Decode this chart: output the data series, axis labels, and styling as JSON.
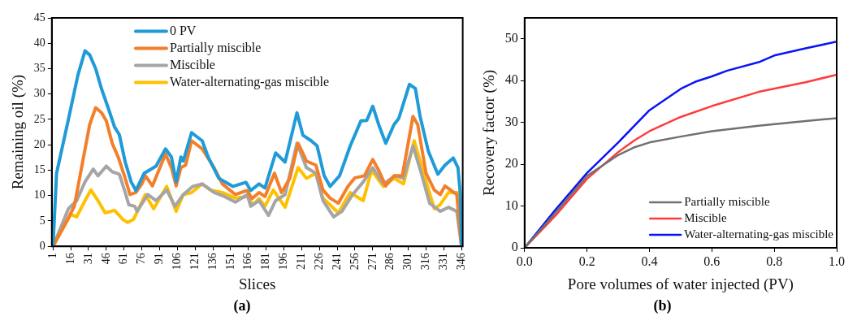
{
  "chart_data": [
    {
      "type": "line",
      "xlabel": "Slices",
      "ylabel": "Remaining oil (%)",
      "annotations": [
        "(a)"
      ],
      "xlim": [
        0,
        347
      ],
      "xticks": [
        1,
        16,
        31,
        46,
        61,
        76,
        91,
        106,
        121,
        136,
        151,
        166,
        181,
        196,
        211,
        226,
        241,
        256,
        271,
        286,
        301,
        316,
        331,
        346
      ],
      "ylim": [
        0,
        45
      ],
      "yticks": [
        0,
        5,
        10,
        15,
        20,
        25,
        30,
        35,
        40,
        45
      ],
      "legend": "top",
      "grid": false,
      "marker": "none",
      "line_style": "solid",
      "series": [
        {
          "name": "0 PV",
          "color": "#1f9bd7",
          "x": [
            1,
            4,
            14,
            22,
            28,
            32,
            37,
            42,
            48,
            53,
            57,
            62,
            67,
            71,
            78,
            88,
            96,
            101,
            105,
            109,
            111,
            118,
            127,
            132,
            141,
            153,
            164,
            168,
            175,
            180,
            189,
            197,
            207,
            212,
            219,
            224,
            230,
            235,
            243,
            252,
            261,
            266,
            271,
            276,
            282,
            289,
            293,
            302,
            307,
            311,
            318,
            326,
            332,
            339,
            343,
            345,
            346
          ],
          "values": [
            0,
            14.4,
            25,
            33.7,
            38.5,
            37.7,
            35,
            31,
            27,
            23.5,
            22,
            16.6,
            12.7,
            11,
            14.4,
            15.8,
            19.2,
            17.6,
            12.7,
            17.6,
            16.8,
            22.4,
            20.8,
            17.6,
            13.4,
            11.8,
            12.6,
            11,
            12.3,
            11.5,
            18.4,
            16.6,
            26.3,
            21.9,
            20.8,
            19.8,
            13.9,
            11.8,
            13.9,
            19.8,
            24.7,
            24.8,
            27.6,
            24,
            20.3,
            24,
            25.2,
            31.9,
            31.1,
            25.6,
            18.7,
            14.2,
            16,
            17.4,
            15.5,
            10.2,
            0
          ]
        },
        {
          "name": "Partially miscible",
          "color": "#f47f2a",
          "x": [
            1,
            12,
            19,
            26,
            32,
            37,
            42,
            46,
            51,
            56,
            62,
            66,
            71,
            76,
            79,
            85,
            96,
            101,
            105,
            109,
            113,
            118,
            127,
            137,
            144,
            155,
            165,
            169,
            175,
            180,
            188,
            194,
            201,
            208,
            215,
            223,
            229,
            235,
            242,
            250,
            256,
            264,
            271,
            276,
            282,
            289,
            296,
            305,
            309,
            316,
            323,
            328,
            332,
            342,
            346
          ],
          "values": [
            0,
            4.7,
            7.9,
            16.6,
            24,
            27.3,
            26.3,
            24.7,
            20.3,
            17.6,
            13.4,
            10.2,
            10.6,
            12.3,
            13.9,
            11.9,
            18.2,
            15.5,
            11.9,
            15.5,
            16,
            20.8,
            19.2,
            15.5,
            12.3,
            10.2,
            11,
            9.4,
            10.6,
            9.8,
            14.4,
            10.6,
            13.4,
            20.3,
            16.8,
            16,
            11.1,
            9.5,
            8.5,
            11.8,
            13.5,
            13.9,
            17.1,
            15,
            11.9,
            13.9,
            13.9,
            25.6,
            24,
            14.4,
            11.1,
            10.2,
            11.9,
            10.2,
            0
          ]
        },
        {
          "name": "Miscible",
          "color": "#a5a5a5",
          "x": [
            1,
            14,
            21,
            28,
            35,
            39,
            46,
            51,
            57,
            62,
            65,
            70,
            72,
            81,
            88,
            97,
            104,
            111,
            119,
            127,
            137,
            146,
            155,
            165,
            168,
            175,
            183,
            189,
            197,
            207,
            215,
            223,
            229,
            238,
            245,
            254,
            263,
            271,
            280,
            290,
            297,
            305,
            312,
            319,
            328,
            335,
            342,
            346
          ],
          "values": [
            0,
            7.4,
            9,
            12.7,
            15.2,
            13.9,
            15.8,
            14.7,
            14.2,
            10.6,
            8.2,
            7.9,
            6.9,
            10.2,
            9,
            11.1,
            7.9,
            10.2,
            11.8,
            12.3,
            10.6,
            9.8,
            8.7,
            10.2,
            7.9,
            9,
            6.1,
            9,
            10.2,
            20.3,
            15.5,
            14.4,
            9,
            5.8,
            6.9,
            10.2,
            12.7,
            15.5,
            12.3,
            13.9,
            13.4,
            19.8,
            14.4,
            8.5,
            6.9,
            7.7,
            6.9,
            0
          ]
        },
        {
          "name": "Water-alternating-gas miscible",
          "color": "#ffc000",
          "x": [
            1,
            16,
            21,
            28,
            33,
            39,
            45,
            53,
            60,
            64,
            69,
            79,
            86,
            97,
            105,
            111,
            118,
            127,
            134,
            144,
            155,
            165,
            170,
            175,
            180,
            187,
            197,
            208,
            215,
            223,
            229,
            242,
            252,
            263,
            270,
            280,
            289,
            297,
            306,
            314,
            323,
            328,
            335,
            343,
            346
          ],
          "values": [
            0,
            6.3,
            5.8,
            9,
            11.1,
            9,
            6.6,
            7.1,
            5.3,
            4.7,
            5.3,
            10.2,
            7.4,
            11.8,
            6.9,
            10.2,
            10.6,
            12.3,
            11.1,
            10.6,
            9.5,
            9.8,
            8.2,
            9.4,
            7.9,
            11.1,
            7.7,
            15.5,
            13.4,
            14.4,
            9.5,
            6.6,
            10.6,
            9,
            15,
            11.8,
            13.4,
            12.3,
            20.8,
            14.4,
            7.4,
            8.2,
            10.6,
            10.6,
            0
          ]
        }
      ]
    },
    {
      "type": "line",
      "xlabel": "Pore volumes of water injected (PV)",
      "ylabel": "Recovery factor (%)",
      "annotations": [
        "(b)"
      ],
      "xlim": [
        0,
        1
      ],
      "xticks": [
        {
          "value": 0,
          "label": "0.0"
        },
        0.2,
        0.4,
        0.6,
        0.8,
        {
          "value": 1,
          "label": "1.0"
        }
      ],
      "ylim": [
        0,
        55
      ],
      "yticks": [
        0,
        10,
        20,
        30,
        40,
        50
      ],
      "legend": "bottom right",
      "grid": false,
      "marker": "none",
      "line_style": "solid",
      "series": [
        {
          "name": "Partially miscible",
          "color": "#707070",
          "x": [
            0,
            0.1,
            0.2,
            0.3,
            0.35,
            0.4,
            0.5,
            0.6,
            0.75,
            0.9,
            1
          ],
          "values": [
            0,
            8.5,
            17.2,
            22.2,
            24,
            25.2,
            26.6,
            27.9,
            29.2,
            30.3,
            31
          ]
        },
        {
          "name": "Miscible",
          "color": "#ff3b3b",
          "x": [
            0,
            0.1,
            0.2,
            0.3,
            0.35,
            0.4,
            0.5,
            0.6,
            0.75,
            0.9,
            1
          ],
          "values": [
            0,
            7.8,
            16.5,
            22.9,
            25.6,
            27.9,
            31.3,
            33.9,
            37.3,
            39.6,
            41.4
          ]
        },
        {
          "name": "Water-alternating-gas miscible",
          "color": "#0a14f5",
          "x": [
            0,
            0.1,
            0.2,
            0.3,
            0.4,
            0.5,
            0.55,
            0.6,
            0.65,
            0.75,
            0.8,
            0.9,
            1
          ],
          "values": [
            0,
            9.2,
            17.9,
            25.2,
            32.9,
            38,
            39.8,
            41,
            42.4,
            44.4,
            46,
            47.7,
            49.3
          ]
        }
      ]
    }
  ]
}
